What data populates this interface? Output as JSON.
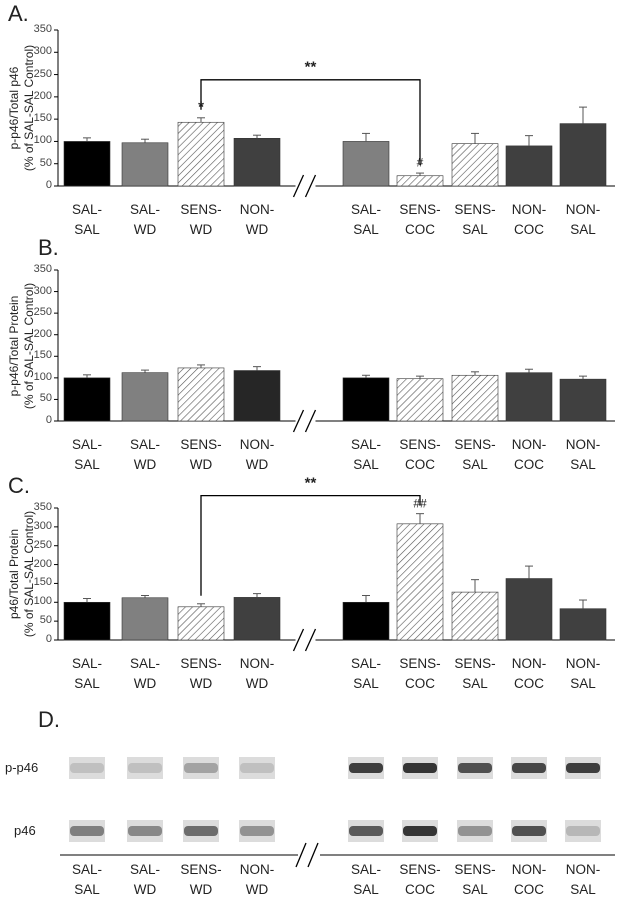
{
  "chart_data": [
    {
      "type": "bar",
      "panel_label": "A.",
      "ylabel": "p-p46/Total p46\n(% of SAL-SAL Control)",
      "categories": [
        "SAL-\nSAL",
        "SAL-\nWD",
        "SENS-\nWD",
        "NON-\nWD",
        "SAL-\nSAL",
        "SENS-\nCOC",
        "SENS-\nSAL",
        "NON-\nCOC",
        "NON-\nSAL"
      ],
      "values": [
        100,
        97,
        143,
        107,
        100,
        23,
        95,
        90,
        140
      ],
      "errors": [
        8,
        8,
        10,
        7,
        18,
        6,
        23,
        23,
        37
      ],
      "colors": [
        "#000000",
        "#808080",
        "hatch",
        "#404040",
        "#808080",
        "hatch",
        "hatch",
        "#404040",
        "#404040"
      ],
      "axis_break_after": 3,
      "ylim": [
        0,
        350
      ],
      "yticks": [
        0,
        50,
        100,
        150,
        200,
        250,
        300,
        350
      ],
      "annotations": [
        {
          "text": "*",
          "category": 2
        },
        {
          "text": "#",
          "category": 5
        },
        {
          "text": "**",
          "from": 2,
          "to": 5
        }
      ]
    },
    {
      "type": "bar",
      "panel_label": "B.",
      "ylabel": "p-p46/Total Protein\n(% of SAL-SAL Control)",
      "categories": [
        "SAL-\nSAL",
        "SAL-\nWD",
        "SENS-\nWD",
        "NON-\nWD",
        "SAL-\nSAL",
        "SENS-\nCOC",
        "SENS-\nSAL",
        "NON-\nCOC",
        "NON-\nSAL"
      ],
      "values": [
        100,
        112,
        123,
        117,
        100,
        98,
        106,
        112,
        97
      ],
      "errors": [
        7,
        6,
        7,
        9,
        6,
        6,
        8,
        8,
        7
      ],
      "colors": [
        "#000000",
        "#808080",
        "hatch",
        "#262626",
        "#000000",
        "hatch",
        "hatch",
        "#404040",
        "#404040"
      ],
      "axis_break_after": 3,
      "ylim": [
        0,
        350
      ],
      "yticks": [
        0,
        50,
        100,
        150,
        200,
        250,
        300,
        350
      ],
      "annotations": []
    },
    {
      "type": "bar",
      "panel_label": "C.",
      "ylabel": "p46/Total Protein\n(% of SAL-SAL Control)",
      "categories": [
        "SAL-\nSAL",
        "SAL-\nWD",
        "SENS-\nWD",
        "NON-\nWD",
        "SAL-\nSAL",
        "SENS-\nCOC",
        "SENS-\nSAL",
        "NON-\nCOC",
        "NON-\nSAL"
      ],
      "values": [
        100,
        112,
        88,
        113,
        100,
        308,
        127,
        163,
        83
      ],
      "errors": [
        10,
        6,
        8,
        10,
        18,
        27,
        33,
        33,
        23
      ],
      "colors": [
        "#000000",
        "#808080",
        "hatch",
        "#404040",
        "#000000",
        "hatch",
        "hatch",
        "#404040",
        "#404040"
      ],
      "axis_break_after": 3,
      "ylim": [
        0,
        350
      ],
      "yticks": [
        0,
        50,
        100,
        150,
        200,
        250,
        300,
        350
      ],
      "annotations": [
        {
          "text": "##",
          "category": 5
        },
        {
          "text": "**",
          "from": 2,
          "to": 5
        }
      ]
    }
  ],
  "blot": {
    "panel_label": "D.",
    "rows": [
      "p-p46",
      "p46"
    ],
    "categories": [
      "SAL-\nSAL",
      "SAL-\nWD",
      "SENS-\nWD",
      "NON-\nWD",
      "SAL-\nSAL",
      "SENS-\nCOC",
      "SENS-\nSAL",
      "NON-\nCOC",
      "NON-\nSAL"
    ]
  }
}
